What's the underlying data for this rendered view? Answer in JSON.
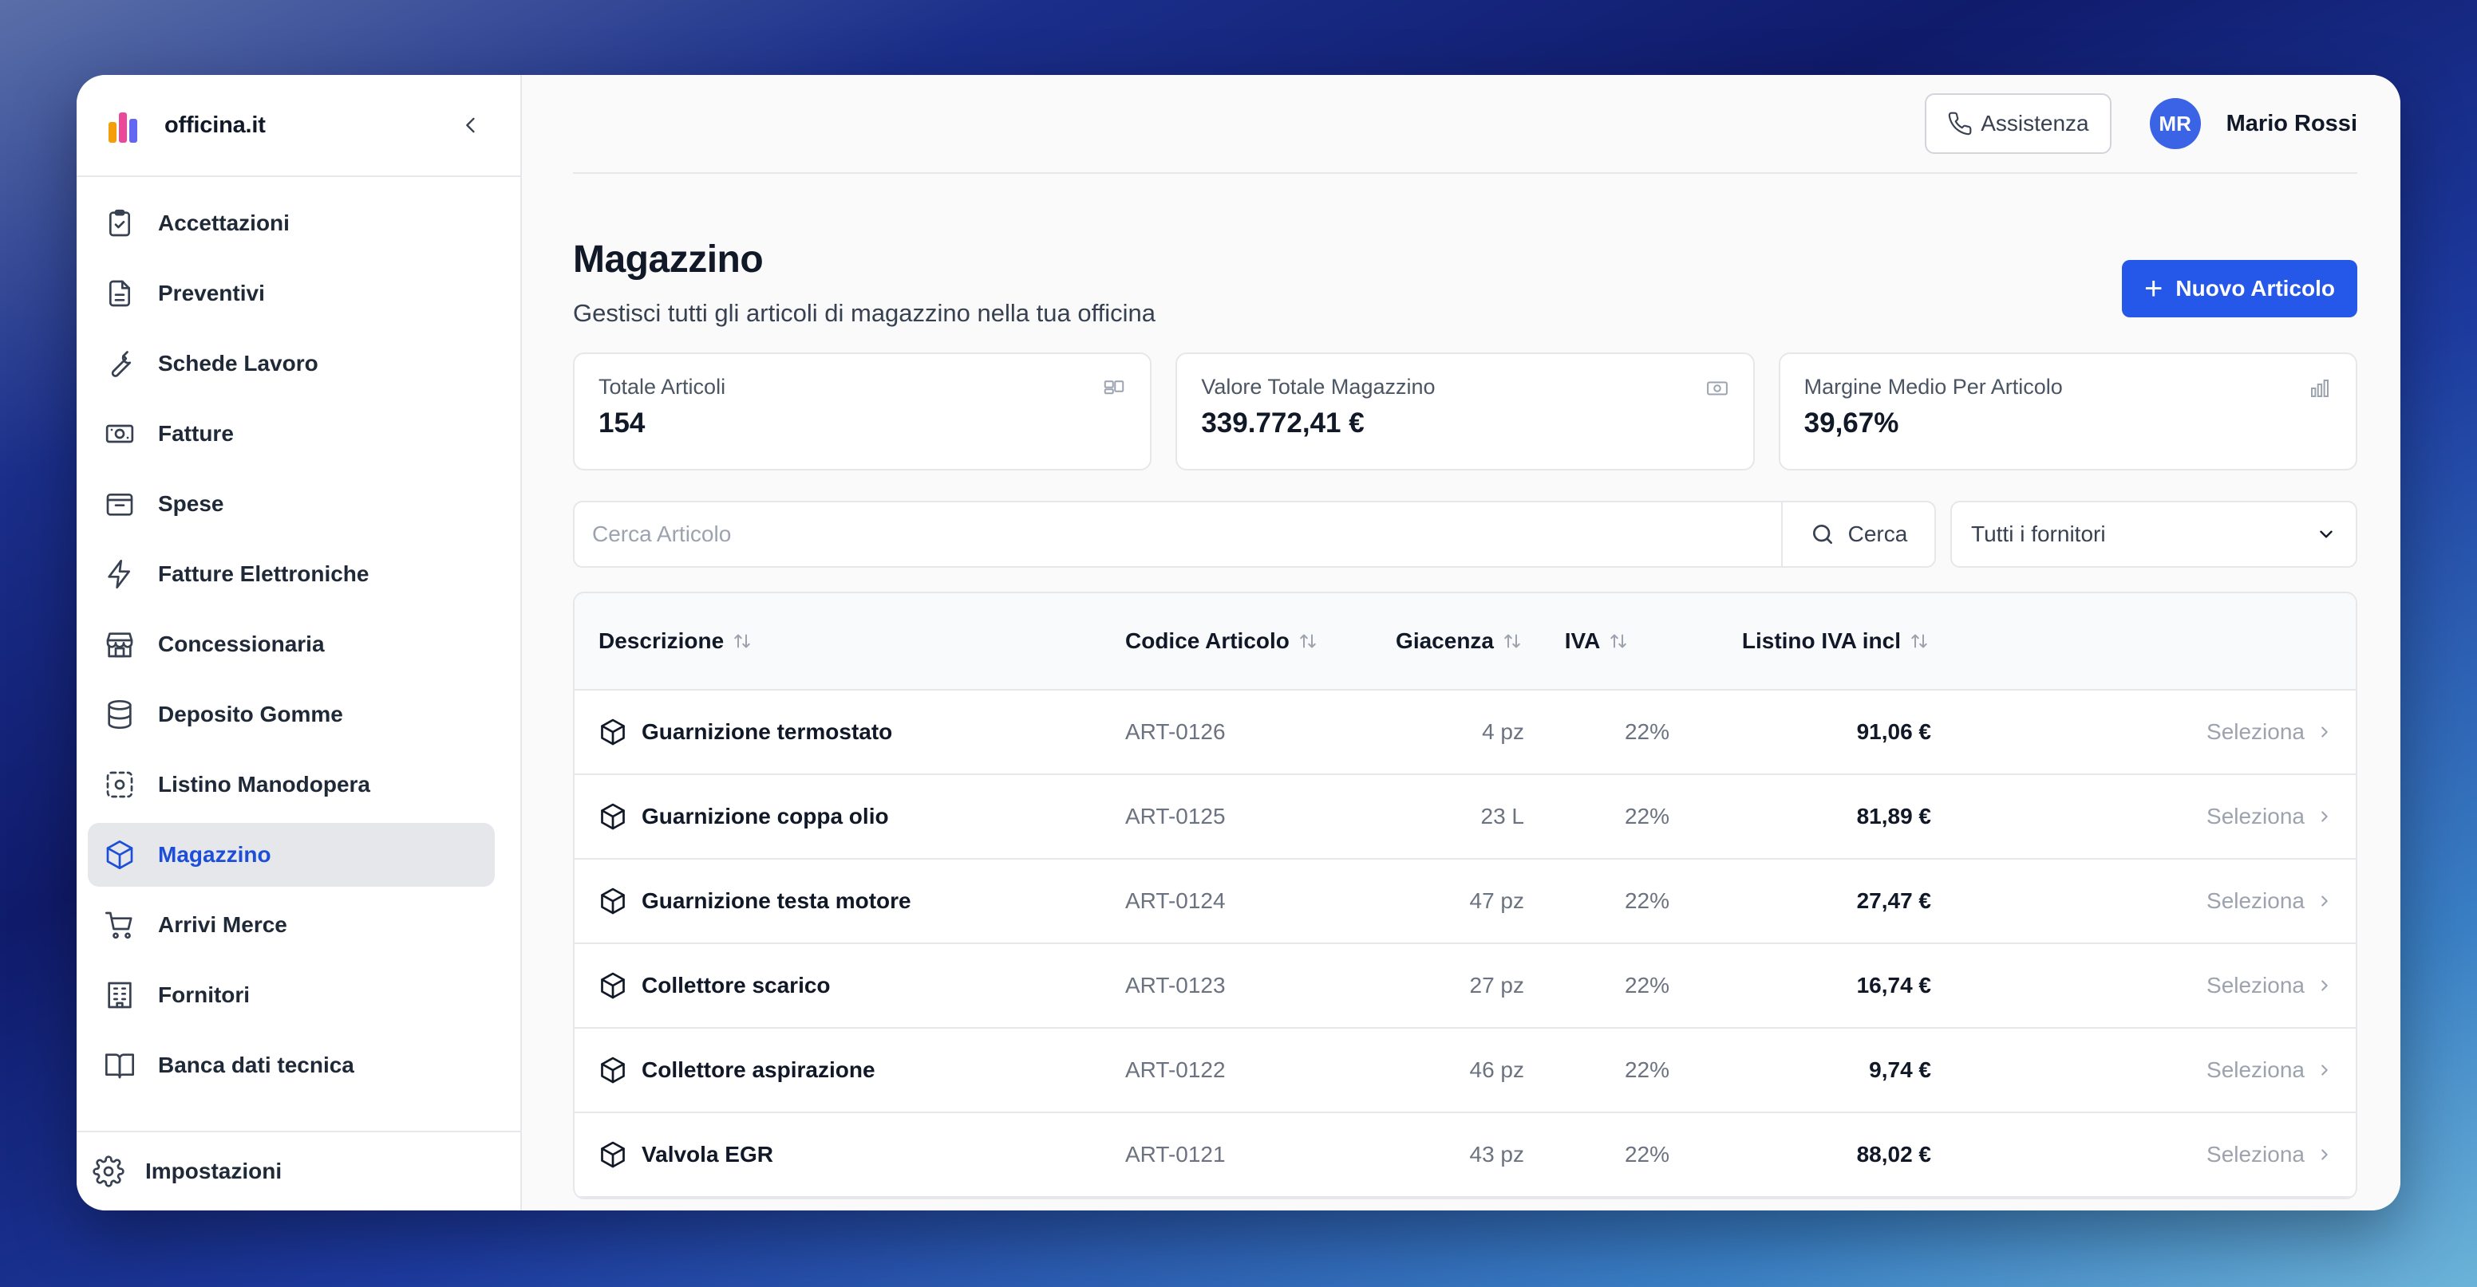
{
  "brand": {
    "name": "officina.it"
  },
  "sidebar": {
    "items": [
      {
        "label": "Accettazioni",
        "icon": "clipboard-check-icon",
        "active": false
      },
      {
        "label": "Preventivi",
        "icon": "document-icon",
        "active": false
      },
      {
        "label": "Schede Lavoro",
        "icon": "wrench-icon",
        "active": false
      },
      {
        "label": "Fatture",
        "icon": "banknote-icon",
        "active": false
      },
      {
        "label": "Spese",
        "icon": "wallet-icon",
        "active": false
      },
      {
        "label": "Fatture Elettroniche",
        "icon": "lightning-icon",
        "active": false
      },
      {
        "label": "Concessionaria",
        "icon": "store-icon",
        "active": false
      },
      {
        "label": "Deposito Gomme",
        "icon": "database-icon",
        "active": false
      },
      {
        "label": "Listino Manodopera",
        "icon": "dashed-circle-icon",
        "active": false
      },
      {
        "label": "Magazzino",
        "icon": "box-icon",
        "active": true
      },
      {
        "label": "Arrivi Merce",
        "icon": "cart-icon",
        "active": false
      },
      {
        "label": "Fornitori",
        "icon": "building-icon",
        "active": false
      },
      {
        "label": "Banca dati tecnica",
        "icon": "book-icon",
        "active": false
      }
    ],
    "settings_label": "Impostazioni"
  },
  "topbar": {
    "assist_label": "Assistenza",
    "avatar_initials": "MR",
    "user_name": "Mario Rossi"
  },
  "page": {
    "title": "Magazzino",
    "subtitle": "Gestisci tutti gli articoli di magazzino nella tua officina",
    "new_button": "Nuovo Articolo"
  },
  "stats": [
    {
      "label": "Totale Articoli",
      "value": "154",
      "icon": "layout-icon"
    },
    {
      "label": "Valore Totale Magazzino",
      "value": "339.772,41 €",
      "icon": "banknote-icon"
    },
    {
      "label": "Margine Medio Per Articolo",
      "value": "39,67%",
      "icon": "bar-chart-icon"
    }
  ],
  "filters": {
    "search_placeholder": "Cerca Articolo",
    "search_button": "Cerca",
    "supplier_selected": "Tutti i fornitori"
  },
  "table": {
    "headers": {
      "description": "Descrizione",
      "code": "Codice Articolo",
      "stock": "Giacenza",
      "vat": "IVA",
      "price": "Listino IVA incl"
    },
    "select_label": "Seleziona",
    "rows": [
      {
        "description": "Guarnizione termostato",
        "code": "ART-0126",
        "stock": "4 pz",
        "vat": "22%",
        "price": "91,06 €"
      },
      {
        "description": "Guarnizione coppa olio",
        "code": "ART-0125",
        "stock": "23 L",
        "vat": "22%",
        "price": "81,89 €"
      },
      {
        "description": "Guarnizione testa motore",
        "code": "ART-0124",
        "stock": "47 pz",
        "vat": "22%",
        "price": "27,47 €"
      },
      {
        "description": "Collettore scarico",
        "code": "ART-0123",
        "stock": "27 pz",
        "vat": "22%",
        "price": "16,74 €"
      },
      {
        "description": "Collettore aspirazione",
        "code": "ART-0122",
        "stock": "46 pz",
        "vat": "22%",
        "price": "9,74 €"
      },
      {
        "description": "Valvola EGR",
        "code": "ART-0121",
        "stock": "43 pz",
        "vat": "22%",
        "price": "88,02 €"
      }
    ]
  },
  "colors": {
    "accent": "#2557e8",
    "active_nav_text": "#1d4ed8",
    "avatar": "#3b63e6"
  }
}
